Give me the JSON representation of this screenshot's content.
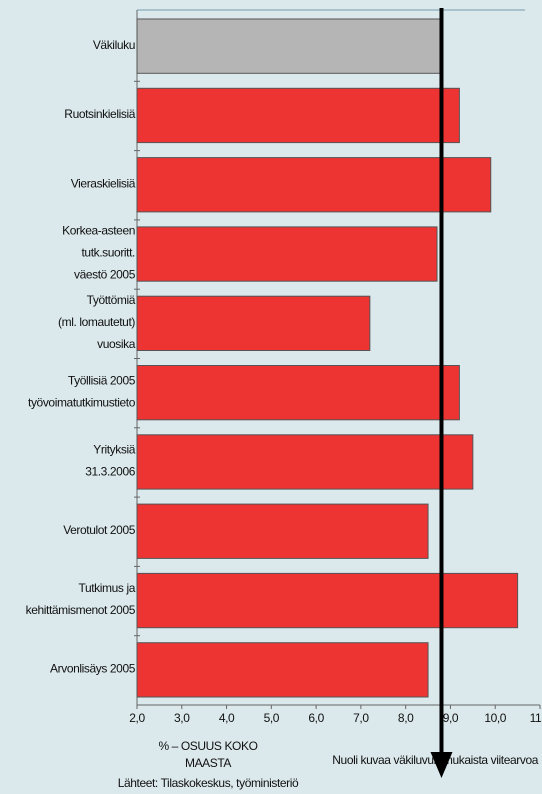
{
  "chart_data": {
    "type": "bar",
    "orientation": "horizontal",
    "categories": [
      [
        "Väkiluku"
      ],
      [
        "Ruotsinkielisiä"
      ],
      [
        "Vieraskielisiä"
      ],
      [
        "Korkea-asteen",
        "tutk.suoritt.",
        "väestö 2005"
      ],
      [
        "Työttömiä",
        "(ml. lomautetut)",
        "vuosika"
      ],
      [
        "Työllisiä 2005",
        "työvoimatutkimustieto"
      ],
      [
        "Yrityksiä",
        "31.3.2006"
      ],
      [
        "Verotulot 2005"
      ],
      [
        "Tutkimus ja",
        "kehittämismenot 2005"
      ],
      [
        "Arvonlisäys 2005"
      ]
    ],
    "values": [
      8.8,
      9.2,
      9.9,
      8.7,
      7.2,
      9.2,
      9.5,
      8.5,
      10.5,
      8.5
    ],
    "colors": [
      "#b5b5b5",
      "#ee3333",
      "#ee3333",
      "#ee3333",
      "#ee3333",
      "#ee3333",
      "#ee3333",
      "#ee3333",
      "#ee3333",
      "#ee3333"
    ],
    "xlim": [
      2,
      11
    ],
    "xticks": [
      {
        "value": 2,
        "label": "2,0"
      },
      {
        "value": 3,
        "label": "3,0"
      },
      {
        "value": 4,
        "label": "4,0"
      },
      {
        "value": 5,
        "label": "5,0"
      },
      {
        "value": 6,
        "label": "6,0"
      },
      {
        "value": 7,
        "label": "7,0"
      },
      {
        "value": 8,
        "label": "8,0"
      },
      {
        "value": 9,
        "label": "9,0"
      },
      {
        "value": 10,
        "label": "10,0"
      },
      {
        "value": 11,
        "label": "11,0"
      }
    ],
    "xlabel": [
      "% – OSUUS KOKO",
      "MAASTA"
    ],
    "source": "Lähteet: Tilaskokeskus, työministeriö",
    "annotation": "Nuoli kuvaa väkiluvun mukaista viitearvoa"
  }
}
